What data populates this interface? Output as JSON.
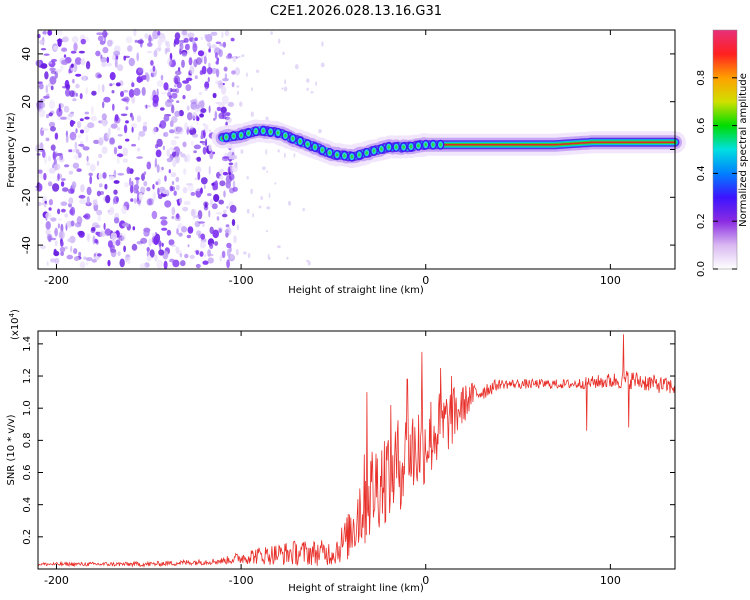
{
  "title": "C2E1.2026.028.13.16.G31",
  "chart_data": [
    {
      "type": "heatmap",
      "xlabel": "Height of straight line (km)",
      "ylabel": "Frequency (Hz)",
      "xlim": [
        -210,
        135
      ],
      "ylim": [
        -50,
        50
      ],
      "xticks": [
        -200,
        -100,
        0,
        100
      ],
      "yticks": [
        -40,
        -20,
        0,
        20,
        40
      ],
      "xtick_labels": [
        "-200",
        "-100",
        "0",
        "100"
      ],
      "ytick_labels": [
        "-40",
        "-20",
        "0",
        "20",
        "40"
      ],
      "noise_region_x": [
        -210,
        -102
      ],
      "trace": [
        {
          "x": -110,
          "f": 5
        },
        {
          "x": -100,
          "f": 6
        },
        {
          "x": -90,
          "f": 8
        },
        {
          "x": -80,
          "f": 7
        },
        {
          "x": -70,
          "f": 4
        },
        {
          "x": -60,
          "f": 1
        },
        {
          "x": -50,
          "f": -2
        },
        {
          "x": -40,
          "f": -3
        },
        {
          "x": -30,
          "f": -1
        },
        {
          "x": -20,
          "f": 1
        },
        {
          "x": -10,
          "f": 1
        },
        {
          "x": 0,
          "f": 2
        },
        {
          "x": 10,
          "f": 2
        },
        {
          "x": 30,
          "f": 2
        },
        {
          "x": 50,
          "f": 2
        },
        {
          "x": 70,
          "f": 2
        },
        {
          "x": 90,
          "f": 3
        },
        {
          "x": 110,
          "f": 3
        },
        {
          "x": 135,
          "f": 3
        }
      ],
      "colorbar": {
        "label": "Normalized spectral amplitude",
        "range": [
          0.0,
          1.0
        ],
        "ticks": [
          "0.0",
          "0.2",
          "0.4",
          "0.6",
          "0.8"
        ],
        "tick_values": [
          0.0,
          0.2,
          0.4,
          0.6,
          0.8
        ],
        "colors": [
          "#ffffff",
          "#d9b8f2",
          "#8a2be2",
          "#3c14ff",
          "#0080ff",
          "#00e0e0",
          "#00dc00",
          "#d0e000",
          "#ffa000",
          "#ff2020",
          "#e8307a"
        ]
      }
    },
    {
      "type": "line",
      "xlabel": "Height of straight line (km)",
      "ylabel": "SNR (10 * v/v)",
      "multiplier_label": "(x10",
      "multiplier_exp": "4",
      "xlim": [
        -210,
        135
      ],
      "ylim": [
        0,
        1.48
      ],
      "xticks": [
        -200,
        -100,
        0,
        100
      ],
      "yticks": [
        0.2,
        0.4,
        0.6,
        0.8,
        1.0,
        1.2,
        1.4
      ],
      "xtick_labels": [
        "-200",
        "-100",
        "0",
        "100"
      ],
      "ytick_labels": [
        "0.2",
        "0.4",
        "0.6",
        "0.8",
        "1.0",
        "1.2",
        "1.4"
      ],
      "color": "#e8302a",
      "series": [
        {
          "name": "SNR",
          "envelope": [
            {
              "x": -210,
              "y": 0.03,
              "amp": 0.01
            },
            {
              "x": -150,
              "y": 0.03,
              "amp": 0.015
            },
            {
              "x": -110,
              "y": 0.05,
              "amp": 0.02
            },
            {
              "x": -95,
              "y": 0.08,
              "amp": 0.05
            },
            {
              "x": -70,
              "y": 0.1,
              "amp": 0.08
            },
            {
              "x": -50,
              "y": 0.1,
              "amp": 0.08
            },
            {
              "x": -42,
              "y": 0.2,
              "amp": 0.15
            },
            {
              "x": -35,
              "y": 0.4,
              "amp": 0.3
            },
            {
              "x": -25,
              "y": 0.55,
              "amp": 0.3
            },
            {
              "x": -15,
              "y": 0.65,
              "amp": 0.3
            },
            {
              "x": -5,
              "y": 0.75,
              "amp": 0.3
            },
            {
              "x": 5,
              "y": 0.85,
              "amp": 0.25
            },
            {
              "x": 15,
              "y": 0.95,
              "amp": 0.18
            },
            {
              "x": 25,
              "y": 1.08,
              "amp": 0.08
            },
            {
              "x": 40,
              "y": 1.15,
              "amp": 0.03
            },
            {
              "x": 80,
              "y": 1.15,
              "amp": 0.03
            },
            {
              "x": 110,
              "y": 1.18,
              "amp": 0.06
            },
            {
              "x": 135,
              "y": 1.13,
              "amp": 0.05
            }
          ],
          "spikes": [
            {
              "x": -32,
              "y": 1.1
            },
            {
              "x": -19,
              "y": 1.02
            },
            {
              "x": -10,
              "y": 1.18
            },
            {
              "x": -2,
              "y": 1.35
            },
            {
              "x": 8,
              "y": 1.25
            },
            {
              "x": 14,
              "y": 1.2
            },
            {
              "x": 107,
              "y": 1.46
            },
            {
              "x": 110,
              "y": 0.88
            },
            {
              "x": 87,
              "y": 0.86
            }
          ]
        }
      ]
    }
  ]
}
